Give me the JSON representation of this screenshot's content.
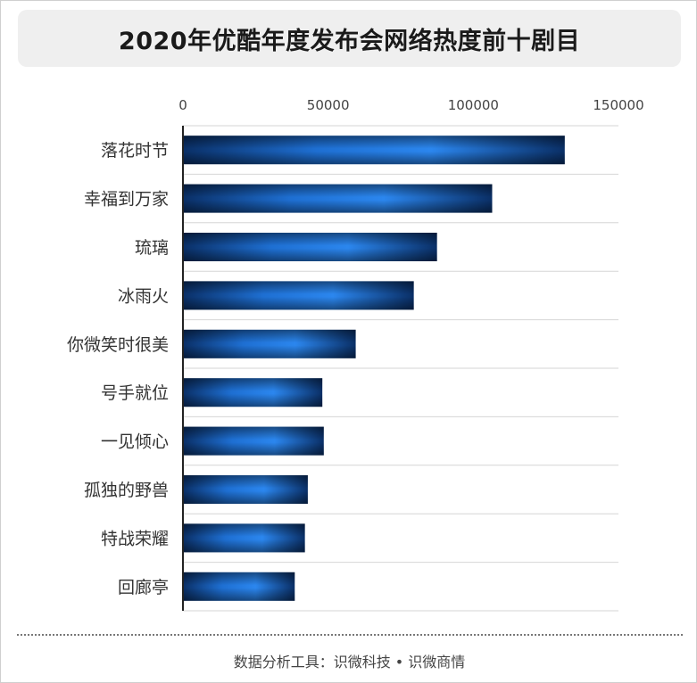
{
  "header": {
    "title": "2020年优酷年度发布会网络热度前十剧目"
  },
  "footer": {
    "source": "数据分析工具：识微科技 • 识微商情"
  },
  "chart_data": {
    "type": "bar",
    "orientation": "horizontal",
    "title": "2020年优酷年度发布会网络热度前十剧目",
    "categories": [
      "落花时节",
      "幸福到万家",
      "琉璃",
      "冰雨火",
      "你微笑时很美",
      "号手就位",
      "一见倾心",
      "孤独的野兽",
      "特战荣耀",
      "回廊亭"
    ],
    "values": [
      131500,
      106500,
      87500,
      79500,
      59500,
      48000,
      48500,
      43000,
      42000,
      38500
    ],
    "xlim": [
      0,
      150000
    ],
    "xticks": [
      "0",
      "50000",
      "100000",
      "150000"
    ],
    "xaxis_position": "top",
    "grid": "horizontal separators",
    "legend": "none",
    "colors": {
      "bar_dark": "#0a2f66",
      "bar_mid": "#1e6fd2",
      "bar_light": "#2b86ee"
    }
  }
}
